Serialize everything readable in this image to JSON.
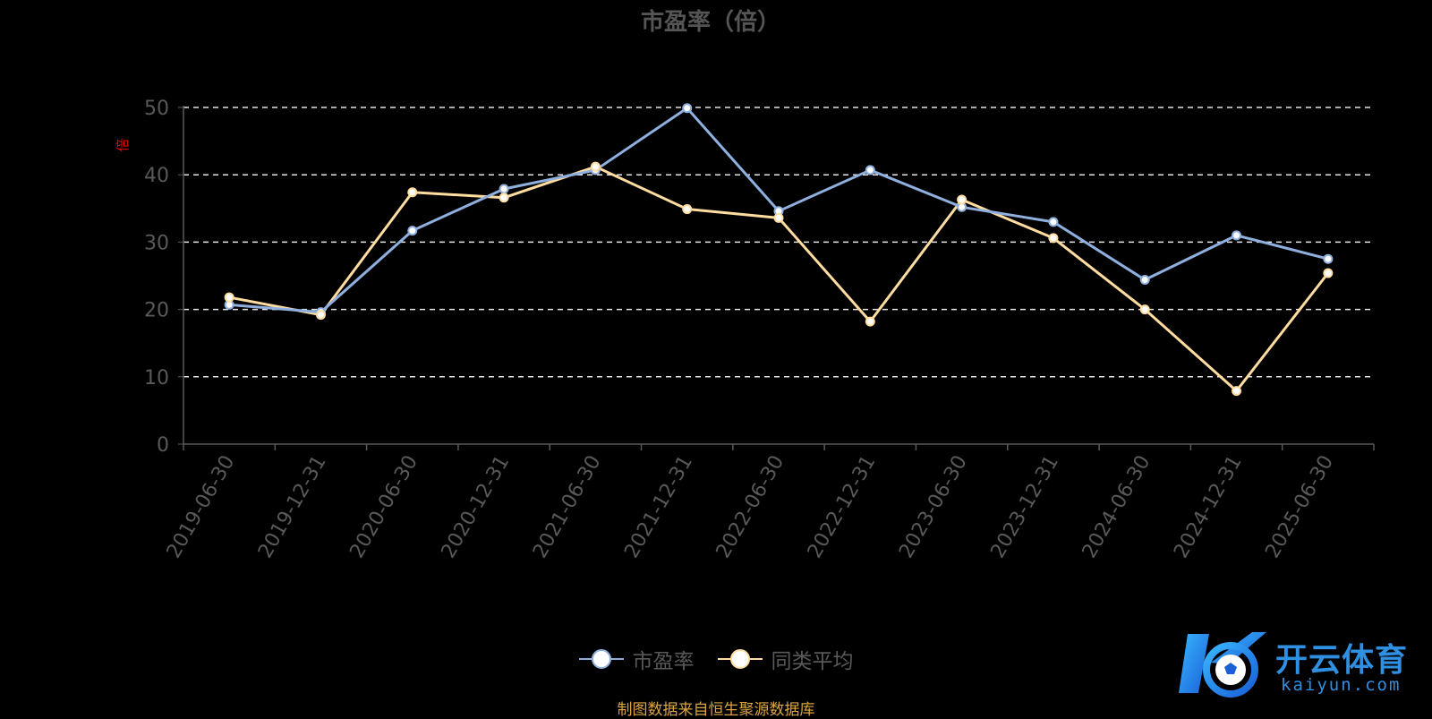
{
  "chart_data": {
    "type": "line",
    "title": "市盈率（倍）",
    "ylabel": "倍",
    "ylim": [
      0,
      50
    ],
    "yticks": [
      0,
      10,
      20,
      30,
      40,
      50
    ],
    "grid": true,
    "legend_position": "bottom-center",
    "categories": [
      "2019-06-30",
      "2019-12-31",
      "2020-06-30",
      "2020-12-31",
      "2021-06-30",
      "2021-12-31",
      "2022-06-30",
      "2022-12-31",
      "2023-06-30",
      "2023-12-31",
      "2024-06-30",
      "2024-12-31",
      "2025-06-30"
    ],
    "series": [
      {
        "name": "市盈率",
        "color": "#8fb0df",
        "values": [
          20.7,
          19.6,
          31.7,
          37.9,
          40.7,
          49.9,
          34.6,
          40.7,
          35.2,
          33.0,
          24.4,
          31.0,
          27.5
        ]
      },
      {
        "name": "同类平均",
        "color": "#ffdca0",
        "values": [
          21.8,
          19.2,
          37.4,
          36.6,
          41.2,
          34.9,
          33.6,
          18.2,
          36.3,
          30.6,
          20.0,
          7.9,
          25.4
        ]
      }
    ]
  },
  "source_note": "制图数据来自恒生聚源数据库",
  "watermark": {
    "name": "开云体育",
    "domain": "kaiyun.com"
  }
}
